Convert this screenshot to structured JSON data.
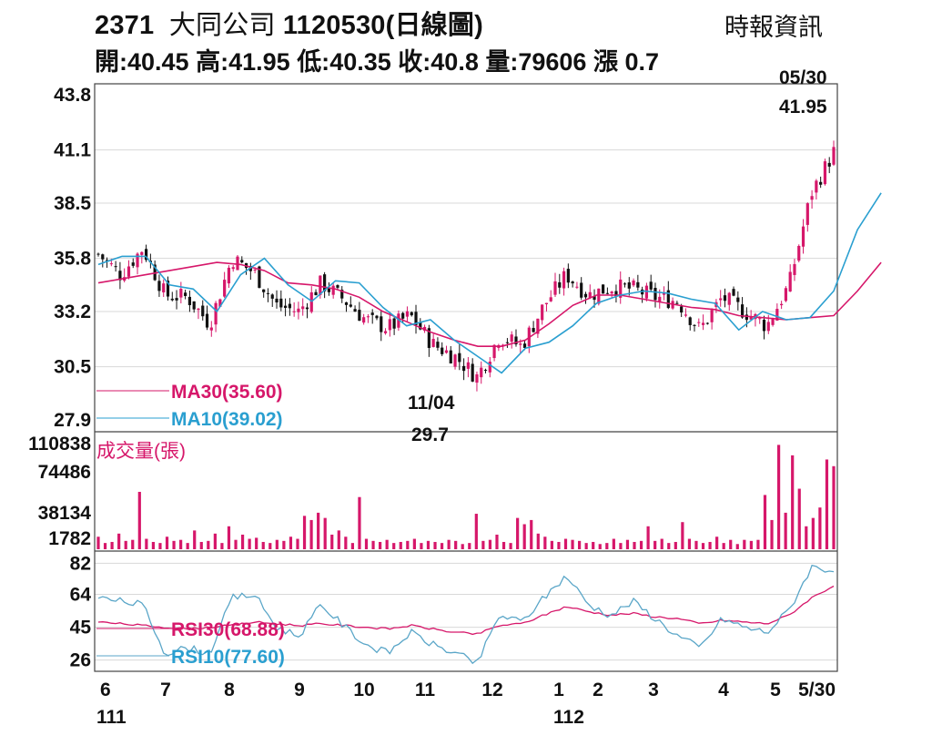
{
  "header": {
    "code": "2371",
    "name": "大同公司",
    "date_label": "1120530(日線圖)",
    "open_label": "開:",
    "open": "40.45",
    "high_label": "高:",
    "high": "41.95",
    "low_label": "低:",
    "low": "40.35",
    "close_label": "收:",
    "close": "40.8",
    "volume_label": "量:",
    "volume": "79606",
    "change_label": "漲",
    "change": "0.7",
    "source": "時報資訊"
  },
  "colors": {
    "up": "#d6176a",
    "down": "#111111",
    "ma30": "#d6176a",
    "ma10": "#2a9fd0",
    "rsi30": "#d6176a",
    "rsi10": "#5aa6c8",
    "grid": "#d8d8d8",
    "volume": "#d6176a"
  },
  "chart_data": [
    {
      "type": "line",
      "name": "price",
      "y_ticks": [
        "43.8",
        "41.1",
        "38.5",
        "35.8",
        "33.2",
        "30.5",
        "27.9"
      ],
      "ylim": [
        27.9,
        43.8
      ],
      "x_tick_labels": [
        "6",
        "7",
        "8",
        "9",
        "10",
        "11",
        "12",
        "1",
        "2",
        "3",
        "4",
        "5",
        "5/30"
      ],
      "x_year_labels": [
        "111",
        "112"
      ],
      "annotations": [
        {
          "date": "05/30",
          "value": "41.95",
          "label": "05/30"
        },
        {
          "date": "11/04",
          "value": "29.7",
          "label": "11/04"
        }
      ],
      "series": [
        {
          "name": "MA30",
          "legend": "MA30(35.60)",
          "points": [
            [
              0,
              34.6
            ],
            [
              2,
              35.0
            ],
            [
              4,
              35.4
            ],
            [
              5,
              35.6
            ],
            [
              6,
              35.5
            ],
            [
              7,
              35.2
            ],
            [
              8,
              34.6
            ],
            [
              9,
              34.5
            ],
            [
              10,
              34.3
            ],
            [
              11,
              33.9
            ],
            [
              12,
              33.2
            ],
            [
              13,
              32.7
            ],
            [
              14,
              32.2
            ],
            [
              15,
              31.8
            ],
            [
              16,
              31.5
            ],
            [
              17,
              31.5
            ],
            [
              18,
              31.8
            ],
            [
              19,
              32.6
            ],
            [
              20,
              33.5
            ],
            [
              21,
              34.0
            ],
            [
              22,
              34.0
            ],
            [
              23,
              33.8
            ],
            [
              24,
              33.6
            ],
            [
              25,
              33.4
            ],
            [
              26,
              33.3
            ],
            [
              27,
              33.0
            ],
            [
              28,
              32.9
            ],
            [
              29,
              32.8
            ],
            [
              30,
              32.9
            ],
            [
              31,
              33.0
            ],
            [
              32,
              34.2
            ],
            [
              33,
              35.6
            ]
          ]
        },
        {
          "name": "MA10",
          "legend": "MA10(39.02)",
          "points": [
            [
              0,
              35.5
            ],
            [
              1,
              35.9
            ],
            [
              2,
              35.9
            ],
            [
              3,
              34.5
            ],
            [
              4,
              34.3
            ],
            [
              5,
              33.2
            ],
            [
              6,
              35.0
            ],
            [
              7,
              35.8
            ],
            [
              8,
              34.5
            ],
            [
              9,
              33.7
            ],
            [
              10,
              34.7
            ],
            [
              11,
              34.6
            ],
            [
              12,
              33.4
            ],
            [
              13,
              32.5
            ],
            [
              14,
              32.8
            ],
            [
              15,
              31.8
            ],
            [
              16,
              31.0
            ],
            [
              17,
              30.2
            ],
            [
              18,
              31.4
            ],
            [
              19,
              31.7
            ],
            [
              20,
              32.5
            ],
            [
              21,
              33.6
            ],
            [
              22,
              34.0
            ],
            [
              23,
              34.2
            ],
            [
              24,
              34.1
            ],
            [
              25,
              33.8
            ],
            [
              26,
              33.6
            ],
            [
              27,
              32.3
            ],
            [
              28,
              33.2
            ],
            [
              29,
              32.8
            ],
            [
              30,
              32.9
            ],
            [
              31,
              34.2
            ],
            [
              32,
              37.2
            ],
            [
              33,
              39.0
            ]
          ]
        }
      ],
      "approx_close": [
        36.0,
        35.0,
        36.3,
        34.0,
        33.9,
        32.6,
        35.8,
        35.1,
        33.5,
        33.2,
        34.6,
        33.8,
        32.8,
        32.4,
        33.0,
        31.6,
        31.0,
        30.0,
        32.0,
        31.5,
        33.5,
        35.0,
        34.0,
        34.4,
        34.3,
        33.9,
        33.7,
        32.3,
        33.9,
        33.2,
        32.5,
        34.5,
        39.0,
        41.0
      ]
    },
    {
      "type": "bar",
      "name": "volume",
      "title": "成交量(張)",
      "y_ticks": [
        "110838",
        "74486",
        "38134",
        "1782"
      ],
      "ylim": [
        1782,
        110838
      ],
      "values": [
        12000,
        6000,
        7000,
        15000,
        8000,
        9000,
        55000,
        10000,
        7000,
        6000,
        12000,
        8000,
        9000,
        6000,
        18000,
        7000,
        8000,
        15000,
        6000,
        22000,
        9000,
        14000,
        10000,
        11000,
        7000,
        6000,
        9000,
        8000,
        12000,
        10000,
        32000,
        28000,
        35000,
        30000,
        14000,
        18000,
        12000,
        6000,
        50000,
        10000,
        8000,
        7000,
        9000,
        6000,
        7000,
        8000,
        10000,
        6000,
        8000,
        7000,
        6000,
        9000,
        8000,
        5000,
        6000,
        34000,
        8000,
        9000,
        14000,
        7000,
        6000,
        30000,
        24000,
        28000,
        15000,
        12000,
        8000,
        7000,
        10000,
        9000,
        8000,
        6000,
        7000,
        5000,
        6000,
        10000,
        6000,
        9000,
        7000,
        8000,
        22000,
        8000,
        10000,
        6000,
        7000,
        26000,
        10000,
        8000,
        6000,
        7000,
        12000,
        6000,
        9000,
        5000,
        9000,
        8000,
        9000,
        52000,
        28000,
        100000,
        35000,
        90000,
        58000,
        22000,
        30000,
        40000,
        86000,
        79606
      ]
    },
    {
      "type": "line",
      "name": "RSI",
      "y_ticks": [
        "82",
        "64",
        "45",
        "26"
      ],
      "ylim": [
        20,
        88
      ],
      "series": [
        {
          "name": "RSI30",
          "legend": "RSI30(68.88)",
          "points": [
            [
              0,
              48
            ],
            [
              1,
              47
            ],
            [
              2,
              46
            ],
            [
              3,
              45
            ],
            [
              4,
              44
            ],
            [
              5,
              45
            ],
            [
              6,
              46
            ],
            [
              7,
              48
            ],
            [
              8,
              47
            ],
            [
              9,
              46
            ],
            [
              10,
              47
            ],
            [
              11,
              46
            ],
            [
              12,
              45
            ],
            [
              13,
              44
            ],
            [
              14,
              46
            ],
            [
              15,
              44
            ],
            [
              16,
              42
            ],
            [
              17,
              41
            ],
            [
              18,
              46
            ],
            [
              19,
              47
            ],
            [
              20,
              52
            ],
            [
              21,
              57
            ],
            [
              22,
              54
            ],
            [
              23,
              52
            ],
            [
              24,
              53
            ],
            [
              25,
              51
            ],
            [
              26,
              50
            ],
            [
              27,
              47
            ],
            [
              28,
              49
            ],
            [
              29,
              48
            ],
            [
              30,
              47
            ],
            [
              31,
              52
            ],
            [
              32,
              62
            ],
            [
              33,
              69
            ]
          ]
        },
        {
          "name": "RSI10",
          "legend": "RSI10(77.60)",
          "points": [
            [
              0,
              62
            ],
            [
              1,
              60
            ],
            [
              2,
              58
            ],
            [
              3,
              30
            ],
            [
              4,
              33
            ],
            [
              5,
              30
            ],
            [
              6,
              62
            ],
            [
              7,
              64
            ],
            [
              8,
              45
            ],
            [
              9,
              40
            ],
            [
              10,
              58
            ],
            [
              11,
              46
            ],
            [
              12,
              35
            ],
            [
              13,
              30
            ],
            [
              14,
              42
            ],
            [
              15,
              35
            ],
            [
              16,
              30
            ],
            [
              17,
              24
            ],
            [
              18,
              52
            ],
            [
              19,
              48
            ],
            [
              20,
              62
            ],
            [
              21,
              75
            ],
            [
              22,
              58
            ],
            [
              23,
              52
            ],
            [
              24,
              60
            ],
            [
              25,
              50
            ],
            [
              26,
              40
            ],
            [
              27,
              33
            ],
            [
              28,
              50
            ],
            [
              29,
              45
            ],
            [
              30,
              42
            ],
            [
              31,
              55
            ],
            [
              32,
              80
            ],
            [
              33,
              78
            ]
          ]
        }
      ]
    }
  ]
}
